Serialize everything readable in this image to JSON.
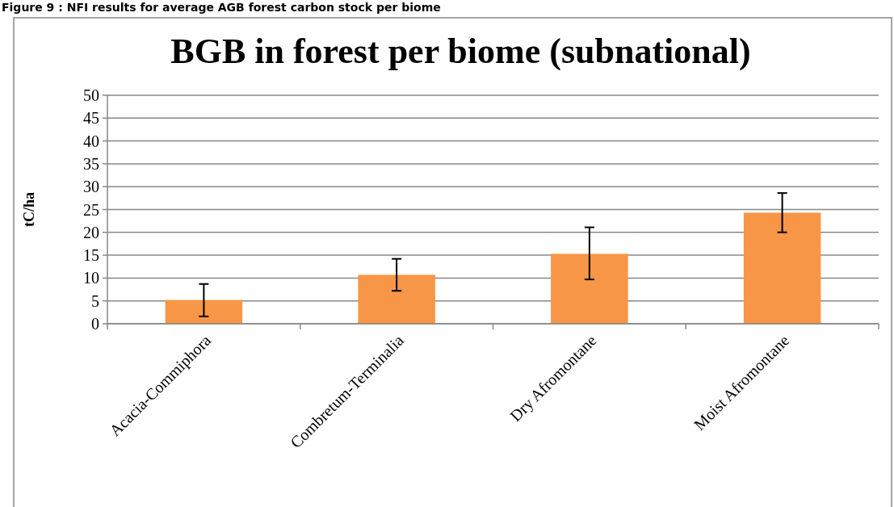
{
  "chart_data": {
    "type": "bar",
    "title": "BGB in forest per biome (subnational)",
    "ylabel": "tC/ha",
    "annotations": [
      "Figure 9 : NFI results for average AGB forest carbon stock per biome"
    ],
    "categories": [
      "Acacia-Commiphora",
      "Combretum-Terminalia",
      "Dry Afromontane",
      "Moist Afromontane"
    ],
    "series": [
      {
        "color": "#f79646",
        "values": [
          5.2,
          10.7,
          15.3,
          24.3
        ],
        "errors": [
          [
            1.6,
            8.7
          ],
          [
            7.2,
            14.2
          ],
          [
            9.7,
            21.1
          ],
          [
            20.0,
            28.6
          ]
        ]
      }
    ],
    "ylim": [
      0,
      50
    ],
    "yticks": [
      0,
      5,
      10,
      15,
      20,
      25,
      30,
      35,
      40,
      45,
      50
    ],
    "grid": "y"
  }
}
